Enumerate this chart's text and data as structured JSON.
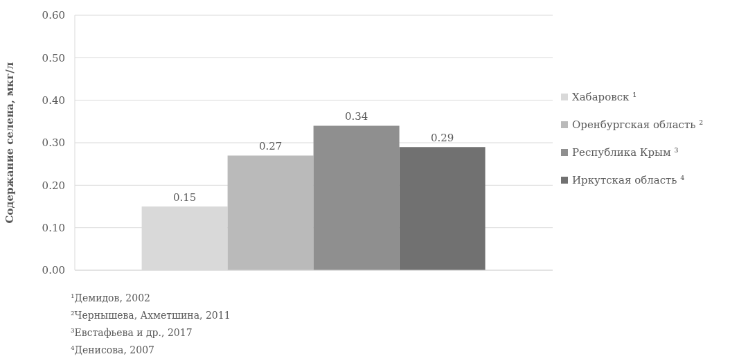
{
  "chart_data": {
    "type": "bar",
    "ylabel": "Содержание селена, мкг/л",
    "categories": [
      null
    ],
    "series": [
      {
        "name": "Хабаровск ¹",
        "color": "#d9d9d9",
        "values": [
          0.15
        ]
      },
      {
        "name": "Оренбургская область ²",
        "color": "#bababa",
        "values": [
          0.27
        ]
      },
      {
        "name": "Республика Крым ³",
        "color": "#8f8f8f",
        "values": [
          0.34
        ]
      },
      {
        "name": "Иркутская область ⁴",
        "color": "#717171",
        "values": [
          0.29
        ]
      }
    ],
    "ylim": [
      0,
      0.6
    ],
    "yticks": [
      {
        "value": 0,
        "label": "0.00"
      },
      {
        "value": 0.1,
        "label": "0.10"
      },
      {
        "value": 0.2,
        "label": "0.20"
      },
      {
        "value": 0.3,
        "label": "0.30"
      },
      {
        "value": 0.4,
        "label": "0.40"
      },
      {
        "value": 0.5,
        "label": "0.50"
      },
      {
        "value": 0.6,
        "label": "0.60"
      }
    ],
    "grid": "y",
    "legend": "right",
    "data_labels": true,
    "tick_labels": "y",
    "annotations": [
      "¹Демидов, 2002",
      "²Чернышева, Ахметшина, 2011",
      "³Евстафьева и др., 2017",
      "⁴Денисова, 2007"
    ]
  }
}
